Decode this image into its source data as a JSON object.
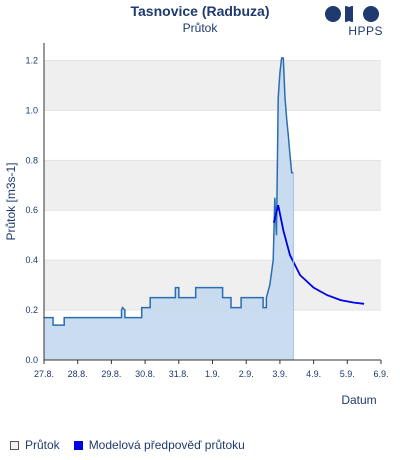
{
  "header": {
    "title": "Tasnovice (Radbuza)",
    "subtitle": "Průtok",
    "logo_text": "HPPS"
  },
  "legend": {
    "measured_label": "Průtok",
    "forecast_label": "Modelová předpověď průtoku"
  },
  "colors": {
    "measured_fill": "#c4d9ee",
    "measured_line": "#2a6db3",
    "forecast_line": "#0000e6",
    "band": "#efefef"
  },
  "chart_data": {
    "type": "line",
    "title": "Průtok",
    "xlabel": "Datum",
    "ylabel": "Průtok [m3s-1]",
    "ylim": [
      0,
      1.27
    ],
    "yticks": [
      "0.0",
      "0.2",
      "0.4",
      "0.6",
      "0.8",
      "1.0",
      "1.2"
    ],
    "ytick_values": [
      0,
      0.2,
      0.4,
      0.6,
      0.8,
      1.0,
      1.2
    ],
    "xticks": [
      "27.8.",
      "28.8.",
      "29.8.",
      "30.8.",
      "31.8.",
      "1.9.",
      "2.9.",
      "3.9.",
      "4.9.",
      "5.9.",
      "6.9."
    ],
    "series": [
      {
        "name": "Průtok",
        "style": "area-step",
        "x": [
          0,
          0.27,
          0.27,
          0.6,
          0.6,
          2.3,
          2.3,
          2.33,
          2.4,
          2.4,
          2.4,
          2.9,
          2.9,
          3.15,
          3.15,
          3.9,
          3.9,
          3.95,
          4.0,
          4.0,
          4.35,
          4.35,
          4.5,
          4.5,
          5.3,
          5.3,
          5.55,
          5.55,
          5.85,
          5.85,
          6.5,
          6.5,
          6.6,
          6.6,
          6.7,
          6.8,
          6.85,
          6.9,
          6.95,
          7.0,
          7.05,
          7.1,
          7.15,
          7.2,
          7.25,
          7.3,
          7.35,
          7.4
        ],
        "values": [
          0.17,
          0.17,
          0.14,
          0.14,
          0.17,
          0.17,
          0.2,
          0.21,
          0.2,
          0.17,
          0.17,
          0.17,
          0.21,
          0.21,
          0.25,
          0.25,
          0.29,
          0.29,
          0.29,
          0.25,
          0.25,
          0.25,
          0.25,
          0.29,
          0.29,
          0.25,
          0.25,
          0.21,
          0.21,
          0.25,
          0.25,
          0.21,
          0.21,
          0.25,
          0.3,
          0.4,
          0.65,
          0.5,
          1.05,
          1.15,
          1.21,
          1.21,
          1.05,
          0.97,
          0.9,
          0.82,
          0.75,
          0.75
        ]
      },
      {
        "name": "Modelová předpověď průtoku",
        "style": "line",
        "x": [
          6.82,
          6.95,
          7.1,
          7.3,
          7.6,
          8.0,
          8.4,
          8.8,
          9.2,
          9.5
        ],
        "values": [
          0.55,
          0.62,
          0.52,
          0.42,
          0.34,
          0.29,
          0.26,
          0.24,
          0.23,
          0.225
        ]
      }
    ],
    "xlim": [
      0,
      10
    ],
    "grid": true
  }
}
